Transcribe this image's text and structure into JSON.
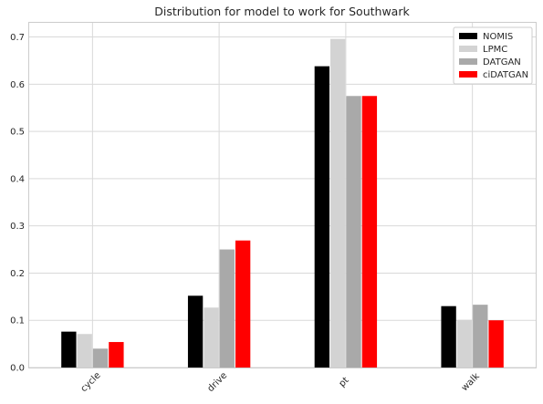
{
  "chart_data": {
    "type": "bar",
    "title": "Distribution for model to work for Southwark",
    "xlabel": "",
    "ylabel": "",
    "categories": [
      "cycle",
      "drive",
      "pt",
      "walk"
    ],
    "series": [
      {
        "name": "NOMIS",
        "color": "#000000",
        "values": [
          0.076,
          0.152,
          0.638,
          0.13
        ]
      },
      {
        "name": "LPMC",
        "color": "#d3d3d3",
        "values": [
          0.071,
          0.127,
          0.696,
          0.101
        ]
      },
      {
        "name": "DATGAN",
        "color": "#a9a9a9",
        "values": [
          0.04,
          0.25,
          0.575,
          0.133
        ]
      },
      {
        "name": "ciDATGAN",
        "color": "#ff0000",
        "values": [
          0.054,
          0.269,
          0.575,
          0.1
        ]
      }
    ],
    "ylim": [
      0,
      0.73
    ],
    "yticks": [
      "0.0",
      "0.1",
      "0.2",
      "0.3",
      "0.4",
      "0.5",
      "0.6",
      "0.7"
    ],
    "grid": true,
    "legend_position": "top-right"
  }
}
